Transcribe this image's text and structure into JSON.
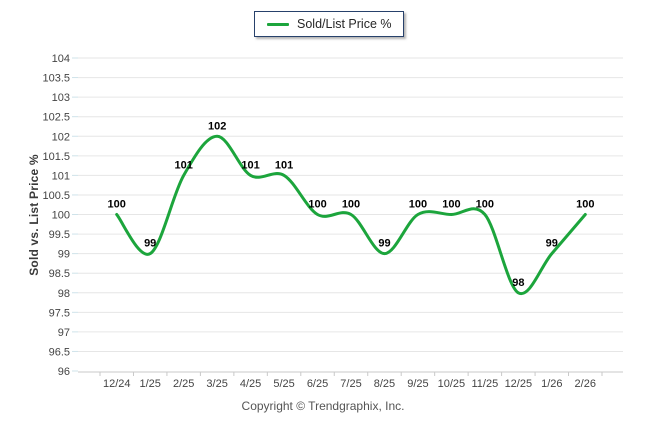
{
  "legend": {
    "label": "Sold/List Price %"
  },
  "footer": {
    "copyright": "Copyright © Trendgraphix, Inc."
  },
  "colors": {
    "line": "#1ca53c",
    "grid": "#e6e6e6",
    "axis": "#c9c9c9",
    "y_tick": "#cfe3ea",
    "tick_label": "#444444",
    "data_label": "#000000",
    "legend_border": "#27416b",
    "copyright": "#555555"
  },
  "chart_data": {
    "type": "line",
    "title": "",
    "xlabel": "",
    "ylabel": "Sold vs. List Price %",
    "categories": [
      "12/24",
      "1/25",
      "2/25",
      "3/25",
      "4/25",
      "5/25",
      "6/25",
      "7/25",
      "8/25",
      "9/25",
      "10/25",
      "11/25",
      "12/25",
      "1/26",
      "2/26"
    ],
    "series": [
      {
        "name": "Sold/List Price %",
        "color": "#1ca53c",
        "values": [
          100,
          99,
          101,
          102,
          101,
          101,
          100,
          100,
          99,
          100,
          100,
          100,
          98,
          99,
          100
        ]
      }
    ],
    "ylim": [
      96,
      104
    ],
    "y_tick_step": 0.5,
    "y_ticks": [
      "104",
      "103.5",
      "103",
      "102.5",
      "102",
      "101.5",
      "101",
      "100.5",
      "100",
      "99.5",
      "99",
      "98.5",
      "98",
      "97.5",
      "97",
      "96.5",
      "96"
    ],
    "grid": "horizontal",
    "smooth": true,
    "data_labels": true,
    "legend_position": "top-center"
  }
}
